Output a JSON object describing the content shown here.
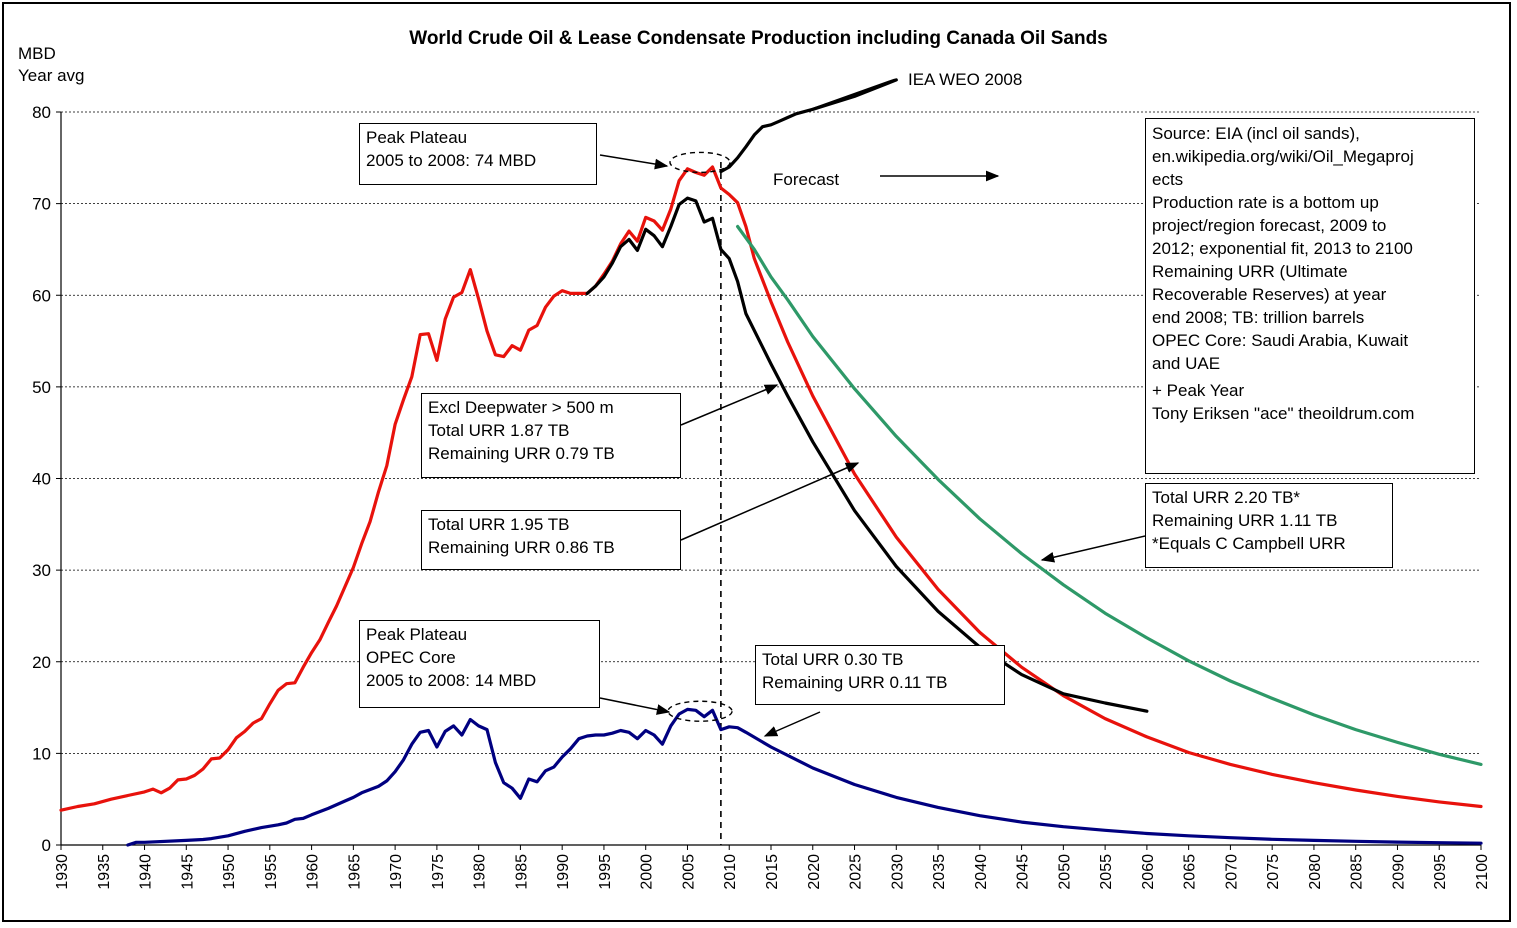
{
  "chart_data": {
    "type": "line",
    "title": "World Crude Oil & Lease Condensate Production including Canada Oil Sands",
    "ylabel": [
      "MBD",
      "Year avg"
    ],
    "xlim": [
      1930,
      2100
    ],
    "ylim": [
      0,
      80
    ],
    "x_ticks": [
      "1930",
      "1935",
      "1940",
      "1945",
      "1950",
      "1955",
      "1960",
      "1965",
      "1970",
      "1975",
      "1980",
      "1985",
      "1990",
      "1995",
      "2000",
      "2005",
      "2010",
      "2015",
      "2020",
      "2025",
      "2030",
      "2035",
      "2040",
      "2045",
      "2050",
      "2055",
      "2060",
      "2065",
      "2070",
      "2075",
      "2080",
      "2085",
      "2090",
      "2095",
      "2100"
    ],
    "y_ticks": [
      "0",
      "10",
      "20",
      "30",
      "40",
      "50",
      "60",
      "70",
      "80"
    ],
    "grid": "horizontal dotted",
    "forecast_start_year": 2009,
    "series": [
      {
        "color": "#e8120c",
        "points": [
          [
            1930,
            3.8
          ],
          [
            1932,
            4.2
          ],
          [
            1934,
            4.5
          ],
          [
            1936,
            5.0
          ],
          [
            1938,
            5.4
          ],
          [
            1940,
            5.8
          ],
          [
            1941,
            6.1
          ],
          [
            1942,
            5.7
          ],
          [
            1943,
            6.2
          ],
          [
            1944,
            7.1
          ],
          [
            1945,
            7.2
          ],
          [
            1946,
            7.6
          ],
          [
            1947,
            8.3
          ],
          [
            1948,
            9.4
          ],
          [
            1949,
            9.5
          ],
          [
            1950,
            10.4
          ],
          [
            1951,
            11.7
          ],
          [
            1952,
            12.4
          ],
          [
            1953,
            13.3
          ],
          [
            1954,
            13.8
          ],
          [
            1955,
            15.4
          ],
          [
            1956,
            16.9
          ],
          [
            1957,
            17.6
          ],
          [
            1958,
            17.7
          ],
          [
            1959,
            19.4
          ],
          [
            1960,
            21.0
          ],
          [
            1961,
            22.4
          ],
          [
            1962,
            24.3
          ],
          [
            1963,
            26.1
          ],
          [
            1964,
            28.2
          ],
          [
            1965,
            30.3
          ],
          [
            1966,
            32.9
          ],
          [
            1967,
            35.3
          ],
          [
            1968,
            38.5
          ],
          [
            1969,
            41.4
          ],
          [
            1970,
            45.9
          ],
          [
            1971,
            48.6
          ],
          [
            1972,
            51.1
          ],
          [
            1973,
            55.7
          ],
          [
            1974,
            55.8
          ],
          [
            1975,
            52.9
          ],
          [
            1976,
            57.4
          ],
          [
            1977,
            59.8
          ],
          [
            1978,
            60.3
          ],
          [
            1979,
            62.8
          ],
          [
            1980,
            59.6
          ],
          [
            1981,
            56.1
          ],
          [
            1982,
            53.5
          ],
          [
            1983,
            53.3
          ],
          [
            1984,
            54.5
          ],
          [
            1985,
            54.0
          ],
          [
            1986,
            56.2
          ],
          [
            1987,
            56.7
          ],
          [
            1988,
            58.7
          ],
          [
            1989,
            59.9
          ],
          [
            1990,
            60.5
          ],
          [
            1991,
            60.2
          ],
          [
            1992,
            60.2
          ],
          [
            1993,
            60.2
          ],
          [
            1994,
            61.0
          ],
          [
            1995,
            62.3
          ],
          [
            1996,
            63.7
          ],
          [
            1997,
            65.6
          ],
          [
            1998,
            67.0
          ],
          [
            1999,
            65.9
          ],
          [
            2000,
            68.5
          ],
          [
            2001,
            68.1
          ],
          [
            2002,
            67.1
          ],
          [
            2003,
            69.4
          ],
          [
            2004,
            72.5
          ],
          [
            2005,
            73.8
          ],
          [
            2006,
            73.4
          ],
          [
            2007,
            73.1
          ],
          [
            2008,
            74.0
          ],
          [
            2009,
            71.7
          ],
          [
            2010,
            71.0
          ],
          [
            2011,
            70.1
          ],
          [
            2012,
            67.5
          ],
          [
            2013,
            64.0
          ],
          [
            2015,
            59.3
          ],
          [
            2017,
            54.9
          ],
          [
            2020,
            49.0
          ],
          [
            2025,
            40.5
          ],
          [
            2030,
            33.6
          ],
          [
            2035,
            27.9
          ],
          [
            2040,
            23.2
          ],
          [
            2045,
            19.4
          ],
          [
            2050,
            16.3
          ],
          [
            2055,
            13.8
          ],
          [
            2060,
            11.8
          ],
          [
            2065,
            10.1
          ],
          [
            2070,
            8.8
          ],
          [
            2075,
            7.7
          ],
          [
            2080,
            6.8
          ],
          [
            2085,
            6.0
          ],
          [
            2090,
            5.3
          ],
          [
            2095,
            4.7
          ],
          [
            2100,
            4.2
          ]
        ]
      },
      {
        "color": "#000000",
        "points": [
          [
            1993,
            60.2
          ],
          [
            1994,
            61.0
          ],
          [
            1995,
            62.0
          ],
          [
            1996,
            63.5
          ],
          [
            1997,
            65.3
          ],
          [
            1998,
            66.1
          ],
          [
            1999,
            64.9
          ],
          [
            2000,
            67.2
          ],
          [
            2001,
            66.5
          ],
          [
            2002,
            65.3
          ],
          [
            2003,
            67.5
          ],
          [
            2004,
            69.9
          ],
          [
            2005,
            70.6
          ],
          [
            2006,
            70.3
          ],
          [
            2007,
            68.0
          ],
          [
            2008,
            68.4
          ],
          [
            2009,
            65.0
          ],
          [
            2010,
            64.0
          ],
          [
            2011,
            61.5
          ],
          [
            2012,
            58.0
          ],
          [
            2015,
            52.5
          ],
          [
            2017,
            49.0
          ],
          [
            2020,
            44.0
          ],
          [
            2025,
            36.5
          ],
          [
            2030,
            30.4
          ],
          [
            2035,
            25.5
          ],
          [
            2040,
            21.6
          ],
          [
            2045,
            18.6
          ],
          [
            2050,
            16.5
          ],
          [
            2055,
            15.5
          ],
          [
            2060,
            14.6
          ]
        ]
      },
      {
        "color": "#2e9968",
        "points": [
          [
            2011,
            67.5
          ],
          [
            2013,
            65.0
          ],
          [
            2015,
            62.0
          ],
          [
            2017,
            59.5
          ],
          [
            2020,
            55.5
          ],
          [
            2025,
            49.8
          ],
          [
            2030,
            44.6
          ],
          [
            2035,
            39.9
          ],
          [
            2040,
            35.6
          ],
          [
            2045,
            31.8
          ],
          [
            2050,
            28.4
          ],
          [
            2055,
            25.3
          ],
          [
            2060,
            22.6
          ],
          [
            2065,
            20.1
          ],
          [
            2070,
            17.9
          ],
          [
            2075,
            16.0
          ],
          [
            2080,
            14.2
          ],
          [
            2085,
            12.6
          ],
          [
            2090,
            11.2
          ],
          [
            2095,
            9.9
          ],
          [
            2100,
            8.8
          ]
        ]
      },
      {
        "color": "#000080",
        "points": [
          [
            1938,
            0.0
          ],
          [
            1939,
            0.3
          ],
          [
            1940,
            0.3
          ],
          [
            1945,
            0.5
          ],
          [
            1947,
            0.6
          ],
          [
            1948,
            0.7
          ],
          [
            1950,
            1.0
          ],
          [
            1952,
            1.5
          ],
          [
            1954,
            1.9
          ],
          [
            1956,
            2.2
          ],
          [
            1957,
            2.4
          ],
          [
            1958,
            2.8
          ],
          [
            1959,
            2.9
          ],
          [
            1960,
            3.3
          ],
          [
            1962,
            4.0
          ],
          [
            1964,
            4.8
          ],
          [
            1965,
            5.2
          ],
          [
            1966,
            5.7
          ],
          [
            1968,
            6.4
          ],
          [
            1969,
            7.0
          ],
          [
            1970,
            8.0
          ],
          [
            1971,
            9.3
          ],
          [
            1972,
            11.0
          ],
          [
            1973,
            12.3
          ],
          [
            1974,
            12.5
          ],
          [
            1975,
            10.7
          ],
          [
            1976,
            12.4
          ],
          [
            1977,
            13.0
          ],
          [
            1978,
            12.0
          ],
          [
            1979,
            13.7
          ],
          [
            1980,
            13.0
          ],
          [
            1981,
            12.6
          ],
          [
            1982,
            9.0
          ],
          [
            1983,
            6.8
          ],
          [
            1984,
            6.2
          ],
          [
            1985,
            5.1
          ],
          [
            1986,
            7.2
          ],
          [
            1987,
            6.9
          ],
          [
            1988,
            8.1
          ],
          [
            1989,
            8.5
          ],
          [
            1990,
            9.6
          ],
          [
            1991,
            10.5
          ],
          [
            1992,
            11.6
          ],
          [
            1993,
            11.9
          ],
          [
            1994,
            12.0
          ],
          [
            1995,
            12.0
          ],
          [
            1996,
            12.2
          ],
          [
            1997,
            12.5
          ],
          [
            1998,
            12.3
          ],
          [
            1999,
            11.6
          ],
          [
            2000,
            12.5
          ],
          [
            2001,
            12.0
          ],
          [
            2002,
            11.0
          ],
          [
            2003,
            13.0
          ],
          [
            2004,
            14.3
          ],
          [
            2005,
            14.8
          ],
          [
            2006,
            14.7
          ],
          [
            2007,
            14.0
          ],
          [
            2008,
            14.7
          ],
          [
            2009,
            12.6
          ],
          [
            2010,
            12.9
          ],
          [
            2011,
            12.8
          ],
          [
            2012,
            12.3
          ],
          [
            2015,
            10.7
          ],
          [
            2020,
            8.4
          ],
          [
            2025,
            6.6
          ],
          [
            2030,
            5.2
          ],
          [
            2035,
            4.1
          ],
          [
            2040,
            3.2
          ],
          [
            2045,
            2.5
          ],
          [
            2050,
            2.0
          ],
          [
            2055,
            1.6
          ],
          [
            2060,
            1.25
          ],
          [
            2065,
            1.0
          ],
          [
            2070,
            0.8
          ],
          [
            2075,
            0.62
          ],
          [
            2080,
            0.5
          ],
          [
            2085,
            0.4
          ],
          [
            2090,
            0.32
          ],
          [
            2095,
            0.25
          ],
          [
            2100,
            0.2
          ]
        ]
      },
      {
        "color": "#000000",
        "points": [
          [
            2009,
            73.5
          ],
          [
            2010,
            74.0
          ],
          [
            2011,
            75.0
          ],
          [
            2012,
            76.2
          ],
          [
            2013,
            77.5
          ],
          [
            2014,
            78.4
          ],
          [
            2015,
            78.6
          ],
          [
            2016,
            79.0
          ],
          [
            2017,
            79.4
          ],
          [
            2018,
            79.8
          ],
          [
            2020,
            80.3
          ],
          [
            2025,
            81.7
          ],
          [
            2030,
            83.5
          ]
        ]
      }
    ],
    "annotations": {
      "iea_label": "IEA WEO 2008",
      "forecast_label": "Forecast",
      "peak_plateau_world": [
        "Peak Plateau",
        "2005 to 2008: 74 MBD"
      ],
      "excl_deepwater": [
        "Excl Deepwater > 500 m",
        "Total URR 1.87 TB",
        "Remaining URR 0.79 TB"
      ],
      "total_urr_195": [
        "Total URR 1.95 TB",
        "Remaining URR 0.86 TB"
      ],
      "total_urr_220": [
        "Total URR 2.20 TB*",
        "Remaining URR 1.11 TB",
        "*Equals C Campbell URR"
      ],
      "peak_plateau_opec": [
        "Peak Plateau",
        "OPEC Core",
        "2005 to 2008: 14 MBD"
      ],
      "total_urr_030": [
        "Total URR 0.30 TB",
        "Remaining URR 0.11 TB"
      ],
      "source": [
        "Source: EIA (incl oil sands),",
        "en.wikipedia.org/wiki/Oil_Megaproj",
        "ects",
        "Production rate is a bottom up",
        "project/region forecast, 2009 to",
        "2012; exponential fit, 2013 to 2100",
        "Remaining URR (Ultimate",
        "Recoverable Reserves) at year",
        "end 2008; TB: trillion barrels",
        "OPEC Core: Saudi Arabia, Kuwait",
        "and UAE",
        "+ Peak Year",
        "Tony Eriksen \"ace\" theoildrum.com"
      ]
    }
  }
}
